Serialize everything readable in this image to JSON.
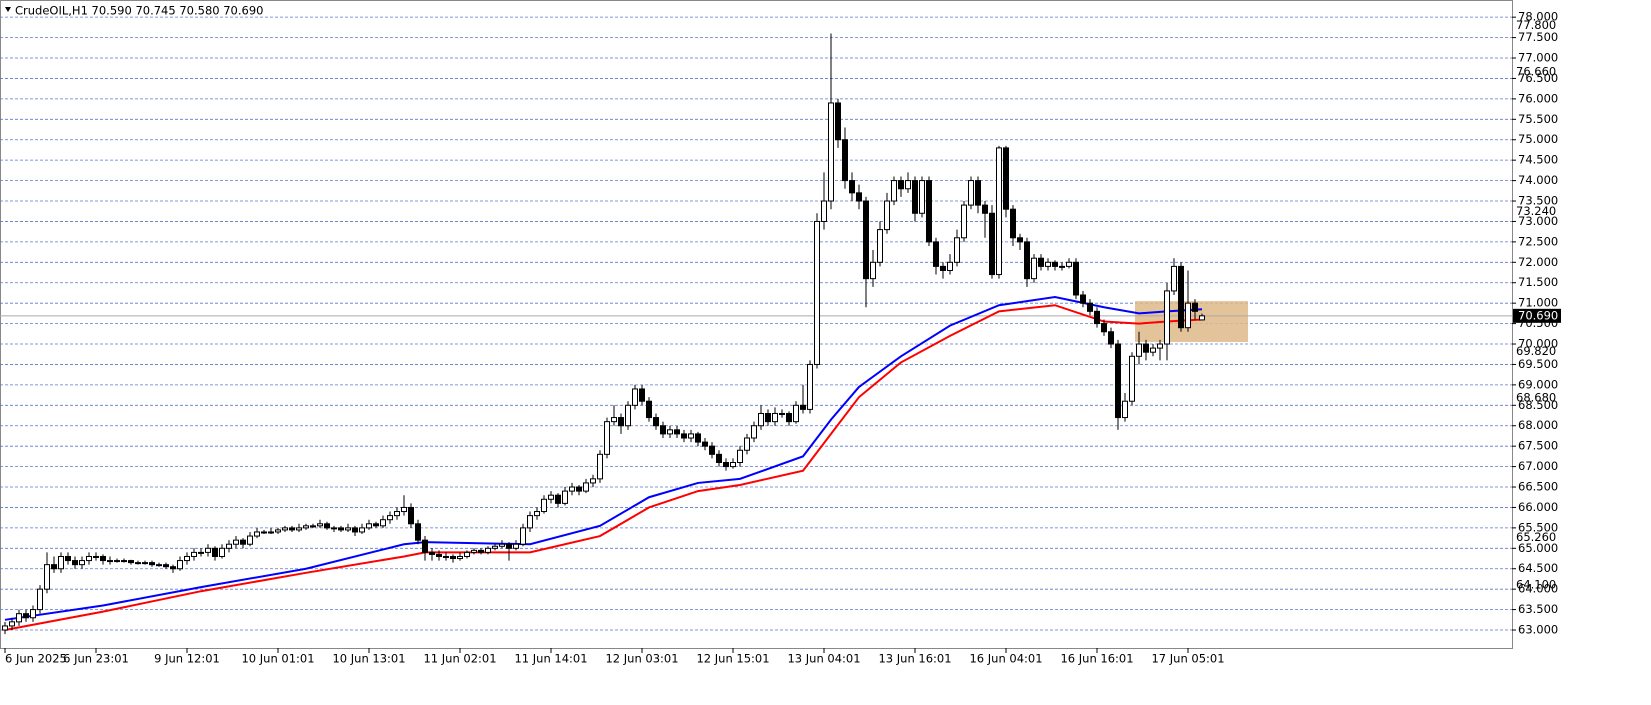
{
  "chart_data": {
    "type": "candlestick",
    "title": "CrudeOIL,H1  70.590 70.745 70.580 70.690",
    "categories": [
      "6 Jun 2025",
      null,
      null,
      null,
      null,
      null,
      null,
      null,
      null,
      null,
      null,
      null,
      null,
      "6 Jun 23:01",
      null,
      null,
      null,
      null,
      null,
      null,
      null,
      null,
      null,
      null,
      null,
      null,
      "9 Jun 12:01",
      null,
      null,
      null,
      null,
      null,
      null,
      null,
      null,
      null,
      null,
      null,
      null,
      "10 Jun 01:01",
      null,
      null,
      null,
      null,
      null,
      null,
      null,
      null,
      null,
      null,
      null,
      null,
      "10 Jun 13:01",
      null,
      null,
      null,
      null,
      null,
      null,
      null,
      null,
      null,
      null,
      null,
      null,
      "11 Jun 02:01",
      null,
      null,
      null,
      null,
      null,
      null,
      null,
      null,
      null,
      null,
      null,
      null,
      "11 Jun 14:01",
      null,
      null,
      null,
      null,
      null,
      null,
      null,
      null,
      null,
      null,
      null,
      null,
      "12 Jun 03:01",
      null,
      null,
      null,
      null,
      null,
      null,
      null,
      null,
      null,
      null,
      null,
      null,
      "12 Jun 15:01",
      null,
      null,
      null,
      null,
      null,
      null,
      null,
      null,
      null,
      null,
      null,
      null,
      "13 Jun 04:01",
      null,
      null,
      null,
      null,
      null,
      null,
      null,
      null,
      null,
      null,
      null,
      null,
      "13 Jun 16:01",
      null,
      null,
      null,
      null,
      null,
      null,
      null,
      null,
      null,
      null,
      null,
      null,
      "16 Jun 04:01",
      null,
      null,
      null,
      null,
      null,
      null,
      null,
      null,
      null,
      null,
      null,
      null,
      "16 Jun 16:01",
      null,
      null,
      null,
      null,
      null,
      null,
      null,
      null,
      null,
      null,
      null,
      null,
      "17 Jun 05:01",
      null,
      null
    ],
    "ohlc": [
      [
        63.0,
        63.2,
        62.9,
        63.1
      ],
      [
        63.1,
        63.3,
        63.0,
        63.2
      ],
      [
        63.2,
        63.5,
        63.1,
        63.4
      ],
      [
        63.4,
        63.5,
        63.2,
        63.3
      ],
      [
        63.3,
        63.6,
        63.2,
        63.5
      ],
      [
        63.5,
        64.1,
        63.4,
        64.0
      ],
      [
        64.0,
        64.9,
        63.9,
        64.6
      ],
      [
        64.6,
        64.8,
        64.4,
        64.5
      ],
      [
        64.5,
        64.9,
        64.4,
        64.8
      ],
      [
        64.8,
        64.9,
        64.6,
        64.7
      ],
      [
        64.7,
        64.8,
        64.5,
        64.6
      ],
      [
        64.6,
        64.8,
        64.5,
        64.7
      ],
      [
        64.7,
        64.9,
        64.6,
        64.8
      ],
      [
        64.8,
        64.9,
        64.7,
        64.8
      ],
      [
        64.8,
        64.85,
        64.6,
        64.7
      ],
      [
        64.7,
        64.8,
        64.6,
        64.7
      ],
      [
        64.7,
        64.75,
        64.65,
        64.7
      ],
      [
        64.7,
        64.75,
        64.65,
        64.7
      ],
      [
        64.7,
        64.72,
        64.6,
        64.65
      ],
      [
        64.65,
        64.7,
        64.6,
        64.65
      ],
      [
        64.65,
        64.7,
        64.6,
        64.65
      ],
      [
        64.65,
        64.7,
        64.55,
        64.6
      ],
      [
        64.6,
        64.65,
        64.55,
        64.6
      ],
      [
        64.6,
        64.65,
        64.5,
        64.55
      ],
      [
        64.55,
        64.6,
        64.4,
        64.5
      ],
      [
        64.5,
        64.8,
        64.45,
        64.7
      ],
      [
        64.7,
        64.9,
        64.6,
        64.8
      ],
      [
        64.8,
        65.0,
        64.7,
        64.9
      ],
      [
        64.9,
        65.0,
        64.8,
        64.9
      ],
      [
        64.9,
        65.1,
        64.8,
        65.0
      ],
      [
        65.0,
        65.05,
        64.7,
        64.8
      ],
      [
        64.8,
        65.1,
        64.75,
        65.0
      ],
      [
        65.0,
        65.2,
        64.9,
        65.1
      ],
      [
        65.1,
        65.3,
        65.0,
        65.2
      ],
      [
        65.2,
        65.25,
        65.0,
        65.1
      ],
      [
        65.1,
        65.4,
        65.05,
        65.3
      ],
      [
        65.3,
        65.5,
        65.25,
        65.4
      ],
      [
        65.4,
        65.45,
        65.35,
        65.4
      ],
      [
        65.4,
        65.5,
        65.35,
        65.4
      ],
      [
        65.4,
        65.5,
        65.35,
        65.45
      ],
      [
        65.45,
        65.55,
        65.4,
        65.5
      ],
      [
        65.5,
        65.55,
        65.4,
        65.45
      ],
      [
        65.45,
        65.6,
        65.4,
        65.5
      ],
      [
        65.5,
        65.6,
        65.45,
        65.55
      ],
      [
        65.55,
        65.6,
        65.5,
        65.55
      ],
      [
        65.55,
        65.7,
        65.5,
        65.6
      ],
      [
        65.6,
        65.65,
        65.45,
        65.5
      ],
      [
        65.5,
        65.55,
        65.4,
        65.5
      ],
      [
        65.5,
        65.55,
        65.4,
        65.45
      ],
      [
        65.45,
        65.6,
        65.4,
        65.5
      ],
      [
        65.5,
        65.55,
        65.3,
        65.4
      ],
      [
        65.4,
        65.6,
        65.35,
        65.5
      ],
      [
        65.5,
        65.7,
        65.45,
        65.6
      ],
      [
        65.6,
        65.65,
        65.5,
        65.55
      ],
      [
        65.55,
        65.8,
        65.5,
        65.7
      ],
      [
        65.7,
        65.9,
        65.6,
        65.8
      ],
      [
        65.8,
        66.0,
        65.7,
        65.9
      ],
      [
        65.9,
        66.3,
        65.8,
        66.0
      ],
      [
        66.0,
        66.1,
        65.5,
        65.6
      ],
      [
        65.6,
        65.7,
        65.1,
        65.2
      ],
      [
        65.2,
        65.3,
        64.7,
        64.9
      ],
      [
        64.9,
        65.0,
        64.7,
        64.85
      ],
      [
        64.85,
        64.95,
        64.7,
        64.8
      ],
      [
        64.8,
        64.9,
        64.7,
        64.8
      ],
      [
        64.8,
        64.85,
        64.65,
        64.75
      ],
      [
        64.75,
        64.9,
        64.7,
        64.8
      ],
      [
        64.8,
        64.95,
        64.75,
        64.9
      ],
      [
        64.9,
        65.0,
        64.85,
        64.95
      ],
      [
        64.95,
        65.0,
        64.85,
        64.9
      ],
      [
        64.9,
        65.05,
        64.85,
        65.0
      ],
      [
        65.0,
        65.1,
        64.95,
        65.05
      ],
      [
        65.05,
        65.2,
        65.0,
        65.1
      ],
      [
        65.1,
        65.15,
        64.7,
        65.0
      ],
      [
        65.0,
        65.2,
        64.95,
        65.1
      ],
      [
        65.1,
        65.6,
        65.05,
        65.5
      ],
      [
        65.5,
        65.9,
        65.4,
        65.8
      ],
      [
        65.8,
        66.0,
        65.7,
        65.9
      ],
      [
        65.9,
        66.3,
        65.85,
        66.2
      ],
      [
        66.2,
        66.4,
        66.1,
        66.3
      ],
      [
        66.3,
        66.35,
        66.0,
        66.1
      ],
      [
        66.1,
        66.5,
        66.05,
        66.4
      ],
      [
        66.4,
        66.6,
        66.3,
        66.5
      ],
      [
        66.5,
        66.55,
        66.3,
        66.4
      ],
      [
        66.4,
        66.7,
        66.35,
        66.6
      ],
      [
        66.6,
        66.8,
        66.5,
        66.7
      ],
      [
        66.7,
        67.4,
        66.6,
        67.3
      ],
      [
        67.3,
        68.2,
        67.2,
        68.1
      ],
      [
        68.1,
        68.5,
        68.0,
        68.2
      ],
      [
        68.2,
        68.3,
        67.8,
        68.0
      ],
      [
        68.0,
        68.6,
        67.9,
        68.5
      ],
      [
        68.5,
        69.0,
        68.4,
        68.9
      ],
      [
        68.9,
        69.0,
        68.5,
        68.6
      ],
      [
        68.6,
        68.7,
        68.1,
        68.2
      ],
      [
        68.2,
        68.3,
        67.9,
        68.0
      ],
      [
        68.0,
        68.1,
        67.7,
        67.8
      ],
      [
        67.8,
        68.0,
        67.7,
        67.9
      ],
      [
        67.9,
        68.0,
        67.7,
        67.8
      ],
      [
        67.8,
        67.9,
        67.6,
        67.7
      ],
      [
        67.7,
        67.9,
        67.6,
        67.8
      ],
      [
        67.8,
        67.85,
        67.5,
        67.6
      ],
      [
        67.6,
        67.7,
        67.4,
        67.5
      ],
      [
        67.5,
        67.6,
        67.2,
        67.3
      ],
      [
        67.3,
        67.4,
        67.0,
        67.1
      ],
      [
        67.1,
        67.2,
        66.9,
        67.0
      ],
      [
        67.0,
        67.2,
        66.95,
        67.1
      ],
      [
        67.1,
        67.5,
        67.0,
        67.4
      ],
      [
        67.4,
        67.8,
        67.3,
        67.7
      ],
      [
        67.7,
        68.1,
        67.6,
        68.0
      ],
      [
        68.0,
        68.5,
        67.9,
        68.3
      ],
      [
        68.3,
        68.4,
        68.0,
        68.1
      ],
      [
        68.1,
        68.45,
        68.0,
        68.3
      ],
      [
        68.3,
        68.4,
        68.2,
        68.3
      ],
      [
        68.3,
        68.35,
        68.0,
        68.1
      ],
      [
        68.1,
        68.6,
        68.05,
        68.5
      ],
      [
        68.5,
        69.0,
        68.3,
        68.4
      ],
      [
        68.4,
        69.6,
        68.3,
        69.5
      ],
      [
        69.5,
        73.2,
        69.4,
        73.0
      ],
      [
        73.0,
        74.2,
        72.8,
        73.5
      ],
      [
        73.5,
        77.6,
        73.3,
        75.9
      ],
      [
        75.9,
        76.0,
        74.8,
        75.0
      ],
      [
        75.0,
        75.3,
        73.8,
        74.0
      ],
      [
        74.0,
        74.2,
        73.5,
        73.7
      ],
      [
        73.7,
        73.9,
        73.3,
        73.5
      ],
      [
        73.5,
        73.6,
        70.9,
        71.6
      ],
      [
        71.6,
        72.3,
        71.4,
        72.0
      ],
      [
        72.0,
        73.0,
        71.9,
        72.8
      ],
      [
        72.8,
        73.7,
        72.7,
        73.5
      ],
      [
        73.5,
        74.1,
        73.4,
        74.0
      ],
      [
        74.0,
        74.1,
        73.6,
        73.8
      ],
      [
        73.8,
        74.2,
        73.7,
        74.0
      ],
      [
        74.0,
        74.1,
        73.0,
        73.2
      ],
      [
        73.2,
        74.1,
        73.1,
        74.0
      ],
      [
        74.0,
        74.1,
        72.4,
        72.5
      ],
      [
        72.5,
        72.6,
        71.7,
        71.9
      ],
      [
        71.9,
        72.0,
        71.6,
        71.8
      ],
      [
        71.8,
        72.2,
        71.7,
        72.0
      ],
      [
        72.0,
        72.8,
        71.9,
        72.6
      ],
      [
        72.6,
        73.5,
        72.5,
        73.4
      ],
      [
        73.4,
        74.1,
        73.3,
        74.0
      ],
      [
        74.0,
        74.1,
        73.2,
        73.4
      ],
      [
        73.4,
        73.5,
        72.6,
        73.2
      ],
      [
        73.2,
        73.4,
        71.6,
        71.7
      ],
      [
        71.7,
        74.85,
        71.6,
        74.8
      ],
      [
        74.8,
        74.85,
        73.1,
        73.3
      ],
      [
        73.3,
        73.4,
        72.4,
        72.6
      ],
      [
        72.6,
        72.7,
        72.3,
        72.5
      ],
      [
        72.5,
        72.6,
        71.4,
        71.6
      ],
      [
        71.6,
        72.2,
        71.5,
        72.1
      ],
      [
        72.1,
        72.2,
        71.8,
        71.9
      ],
      [
        71.9,
        72.1,
        71.8,
        72.0
      ],
      [
        72.0,
        72.05,
        71.8,
        71.9
      ],
      [
        71.9,
        72.0,
        71.8,
        71.9
      ],
      [
        71.9,
        72.1,
        71.85,
        72.0
      ],
      [
        72.0,
        72.1,
        71.1,
        71.2
      ],
      [
        71.2,
        71.3,
        70.9,
        71.0
      ],
      [
        71.0,
        71.1,
        70.7,
        70.8
      ],
      [
        70.8,
        70.9,
        70.4,
        70.5
      ],
      [
        70.5,
        70.6,
        70.2,
        70.3
      ],
      [
        70.3,
        70.4,
        69.9,
        70.0
      ],
      [
        70.0,
        70.1,
        67.9,
        68.2
      ],
      [
        68.2,
        68.8,
        68.1,
        68.6
      ],
      [
        68.6,
        69.8,
        68.5,
        69.7
      ],
      [
        69.7,
        70.3,
        69.5,
        70.0
      ],
      [
        70.0,
        70.1,
        69.6,
        69.8
      ],
      [
        69.8,
        70.0,
        69.7,
        69.9
      ],
      [
        69.9,
        70.1,
        69.6,
        70.0
      ],
      [
        70.0,
        71.5,
        69.6,
        71.3
      ],
      [
        71.3,
        72.1,
        71.2,
        71.9
      ],
      [
        71.9,
        72.0,
        70.3,
        70.4
      ],
      [
        70.4,
        71.8,
        70.3,
        71.0
      ],
      [
        71.0,
        71.1,
        70.6,
        70.8
      ],
      [
        70.59,
        70.745,
        70.58,
        70.69
      ]
    ],
    "series": [
      {
        "color": "#0000ff",
        "x": [
          0,
          14,
          28,
          43,
          57,
          60,
          75,
          85,
          92,
          99,
          105,
          114,
          118,
          122,
          128,
          135,
          142,
          150,
          157,
          162,
          166,
          171
        ],
        "values": [
          63.25,
          63.6,
          64.05,
          64.5,
          65.1,
          65.15,
          65.1,
          65.55,
          66.25,
          66.6,
          66.7,
          67.25,
          68.15,
          68.95,
          69.7,
          70.45,
          70.95,
          71.15,
          70.9,
          70.75,
          70.8,
          70.85
        ]
      },
      {
        "color": "#ff0000",
        "x": [
          0,
          14,
          28,
          43,
          57,
          60,
          75,
          85,
          92,
          99,
          105,
          114,
          118,
          122,
          128,
          135,
          142,
          150,
          157,
          162,
          166,
          171
        ],
        "values": [
          63.0,
          63.45,
          63.95,
          64.4,
          64.8,
          64.9,
          64.9,
          65.3,
          66.0,
          66.4,
          66.55,
          66.9,
          67.8,
          68.7,
          69.55,
          70.2,
          70.8,
          70.95,
          70.55,
          70.5,
          70.55,
          70.6
        ]
      }
    ],
    "ylim": [
      62.56,
      78.42
    ],
    "yticks": [
      {
        "value": 63,
        "label": "63.000"
      },
      {
        "value": 63.5,
        "label": "63.500"
      },
      {
        "value": 64,
        "label": "64.000"
      },
      {
        "value": 64.5,
        "label": "64.500"
      },
      {
        "value": 65,
        "label": "65.000"
      },
      {
        "value": 65.5,
        "label": "65.500"
      },
      {
        "value": 66,
        "label": "66.000"
      },
      {
        "value": 66.5,
        "label": "66.500"
      },
      {
        "value": 67,
        "label": "67.000"
      },
      {
        "value": 67.5,
        "label": "67.500"
      },
      {
        "value": 68,
        "label": "68.000"
      },
      {
        "value": 68.5,
        "label": "68.500"
      },
      {
        "value": 69,
        "label": "69.000"
      },
      {
        "value": 69.5,
        "label": "69.500"
      },
      {
        "value": 70,
        "label": "70.000"
      },
      {
        "value": 70.5,
        "label": "70.500"
      },
      {
        "value": 71,
        "label": "71.000"
      },
      {
        "value": 71.5,
        "label": "71.500"
      },
      {
        "value": 72,
        "label": "72.000"
      },
      {
        "value": 72.5,
        "label": "72.500"
      },
      {
        "value": 73,
        "label": "73.000"
      },
      {
        "value": 73.5,
        "label": "73.500"
      },
      {
        "value": 74,
        "label": "74.000"
      },
      {
        "value": 74.5,
        "label": "74.500"
      },
      {
        "value": 75,
        "label": "75.000"
      },
      {
        "value": 75.5,
        "label": "75.500"
      },
      {
        "value": 76,
        "label": "76.000"
      },
      {
        "value": 76.5,
        "label": "76.500"
      },
      {
        "value": 77,
        "label": "77.000"
      },
      {
        "value": 77.5,
        "label": "77.500"
      },
      {
        "value": 78,
        "label": "78.000"
      }
    ],
    "price_labels": [
      {
        "value": 77.8,
        "label": "77.800"
      },
      {
        "value": 76.66,
        "label": "76.660"
      },
      {
        "value": 73.24,
        "label": "73.240"
      },
      {
        "value": 69.82,
        "label": "69.820"
      },
      {
        "value": 68.68,
        "label": "68.680"
      },
      {
        "value": 65.26,
        "label": "65.260"
      },
      {
        "value": 64.1,
        "label": "64.100"
      }
    ],
    "last_price": {
      "value": 70.69,
      "label": "70.690"
    },
    "zone": {
      "x": [
        161.43,
        177.57
      ],
      "y": [
        70.05,
        71.05
      ],
      "color": "#deb887"
    },
    "grid": true
  }
}
